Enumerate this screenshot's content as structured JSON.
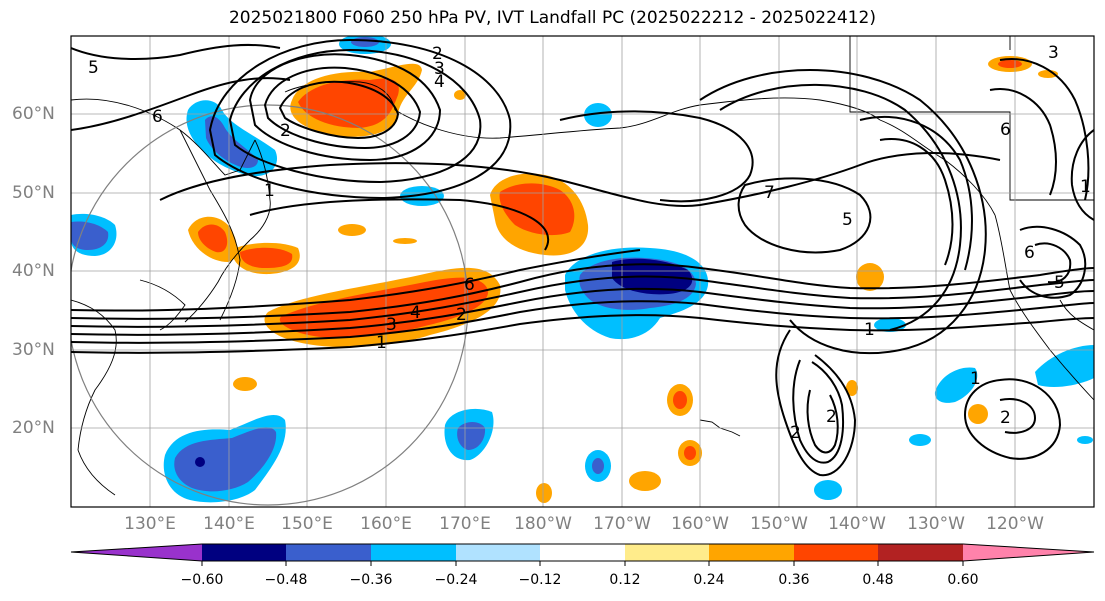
{
  "title": "2025021800 F060 250 hPa PV, IVT Landfall PC (2025022212 - 2025022412)",
  "lat_labels": [
    "60°N",
    "50°N",
    "40°N",
    "30°N",
    "20°N"
  ],
  "lon_labels": [
    "130°E",
    "140°E",
    "150°E",
    "160°E",
    "170°E",
    "180°W",
    "170°W",
    "160°W",
    "150°W",
    "140°W",
    "130°W",
    "120°W"
  ],
  "colorbar": {
    "ticks": [
      "−0.60",
      "−0.48",
      "−0.36",
      "−0.24",
      "−0.12",
      "0.12",
      "0.24",
      "0.36",
      "0.48",
      "0.60"
    ],
    "colors": [
      "#9932cc",
      "#000080",
      "#3a5fcd",
      "#00bfff",
      "#b0e2ff",
      "#ffffff",
      "#ffec8b",
      "#ffa500",
      "#ff4500",
      "#b22222",
      "#ff82ab"
    ]
  },
  "contour_labels": [
    "5",
    "6",
    "2",
    "3",
    "4",
    "2",
    "1",
    "7",
    "5",
    "6",
    "4",
    "3",
    "2",
    "1",
    "1",
    "2",
    "2",
    "2",
    "1",
    "6",
    "5",
    "1",
    "6",
    "3"
  ]
}
